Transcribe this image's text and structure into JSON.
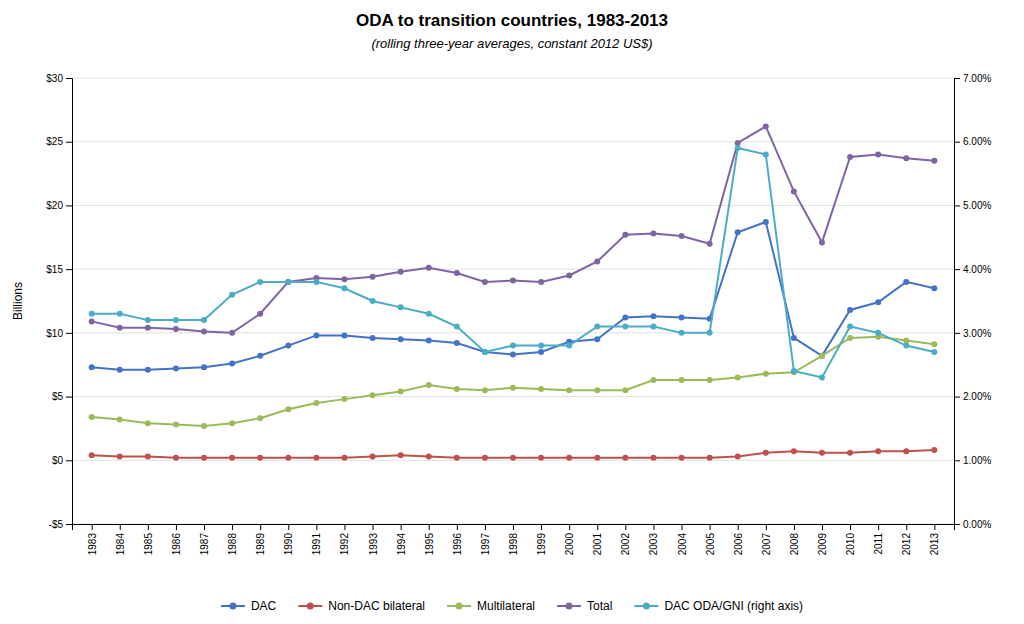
{
  "chart_data": {
    "type": "line",
    "title": "ODA to transition countries, 1983-2013",
    "subtitle": "(rolling three-year averages, constant 2012 US$)",
    "ylabel": "Billions",
    "x": [
      1983,
      1984,
      1985,
      1986,
      1987,
      1988,
      1989,
      1990,
      1991,
      1992,
      1993,
      1994,
      1995,
      1996,
      1997,
      1998,
      1999,
      2000,
      2001,
      2002,
      2003,
      2004,
      2005,
      2006,
      2007,
      2008,
      2009,
      2010,
      2011,
      2012,
      2013
    ],
    "xlim": [
      1982.3,
      2013.7
    ],
    "xticks": [
      1983,
      1984,
      1985,
      1986,
      1987,
      1988,
      1989,
      1990,
      1991,
      1992,
      1993,
      1994,
      1995,
      1996,
      1997,
      1998,
      1999,
      2000,
      2001,
      2002,
      2003,
      2004,
      2005,
      2006,
      2007,
      2008,
      2009,
      2010,
      2011,
      2012,
      2013
    ],
    "ylim": [
      -5,
      30
    ],
    "yticks": [
      {
        "value": -5,
        "label": "-$5"
      },
      {
        "value": 0,
        "label": "$0"
      },
      {
        "value": 5,
        "label": "$5"
      },
      {
        "value": 10,
        "label": "$10"
      },
      {
        "value": 15,
        "label": "$15"
      },
      {
        "value": 20,
        "label": "$20"
      },
      {
        "value": 25,
        "label": "$25"
      },
      {
        "value": 30,
        "label": "$30"
      }
    ],
    "y2lim": [
      0.0,
      0.07
    ],
    "y2ticks": [
      {
        "value": 0.0,
        "label": "0.00%"
      },
      {
        "value": 0.01,
        "label": "1.00%"
      },
      {
        "value": 0.02,
        "label": "2.00%"
      },
      {
        "value": 0.03,
        "label": "3.00%"
      },
      {
        "value": 0.04,
        "label": "4.00%"
      },
      {
        "value": 0.05,
        "label": "5.00%"
      },
      {
        "value": 0.06,
        "label": "6.00%"
      },
      {
        "value": 0.07,
        "label": "7.00%"
      }
    ],
    "grid": true,
    "legend": "bottom",
    "marker": "circle",
    "series": [
      {
        "name": "DAC",
        "color": "#4472C4",
        "values": [
          7.3,
          7.1,
          7.1,
          7.2,
          7.3,
          7.6,
          8.2,
          9.0,
          9.8,
          9.8,
          9.6,
          9.5,
          9.4,
          9.2,
          8.5,
          8.3,
          8.5,
          9.3,
          9.5,
          11.2,
          11.3,
          11.2,
          11.1,
          17.9,
          18.7,
          9.6,
          8.2,
          11.8,
          12.4,
          14.0,
          13.5
        ]
      },
      {
        "name": "Non-DAC bilateral",
        "color": "#C0504D",
        "values": [
          0.4,
          0.3,
          0.3,
          0.2,
          0.2,
          0.2,
          0.2,
          0.2,
          0.2,
          0.2,
          0.3,
          0.4,
          0.3,
          0.2,
          0.2,
          0.2,
          0.2,
          0.2,
          0.2,
          0.2,
          0.2,
          0.2,
          0.2,
          0.3,
          0.6,
          0.7,
          0.6,
          0.6,
          0.7,
          0.7,
          0.8
        ]
      },
      {
        "name": "Multilateral",
        "color": "#9BBB59",
        "values": [
          3.4,
          3.2,
          2.9,
          2.8,
          2.7,
          2.9,
          3.3,
          4.0,
          4.5,
          4.8,
          5.1,
          5.4,
          5.9,
          5.6,
          5.5,
          5.7,
          5.6,
          5.5,
          5.5,
          5.5,
          6.3,
          6.3,
          6.3,
          6.5,
          6.8,
          6.9,
          8.2,
          9.6,
          9.7,
          9.4,
          9.1
        ]
      },
      {
        "name": "Total",
        "color": "#8064A2",
        "values": [
          10.9,
          10.4,
          10.4,
          10.3,
          10.1,
          10.0,
          11.5,
          14.0,
          14.3,
          14.2,
          14.4,
          14.8,
          15.1,
          14.7,
          14.0,
          14.1,
          14.0,
          14.5,
          15.6,
          17.7,
          17.8,
          17.6,
          17.0,
          24.9,
          26.2,
          21.1,
          17.1,
          23.8,
          24.0,
          23.7,
          23.5
        ]
      },
      {
        "name": "DAC ODA/GNI (right axis)",
        "color": "#4BACC6",
        "axis": "y2",
        "values": [
          0.033,
          0.033,
          0.032,
          0.032,
          0.032,
          0.036,
          0.038,
          0.038,
          0.038,
          0.037,
          0.035,
          0.034,
          0.033,
          0.031,
          0.027,
          0.028,
          0.028,
          0.028,
          0.031,
          0.031,
          0.031,
          0.03,
          0.03,
          0.059,
          0.058,
          0.024,
          0.023,
          0.031,
          0.03,
          0.028,
          0.027
        ]
      }
    ]
  }
}
